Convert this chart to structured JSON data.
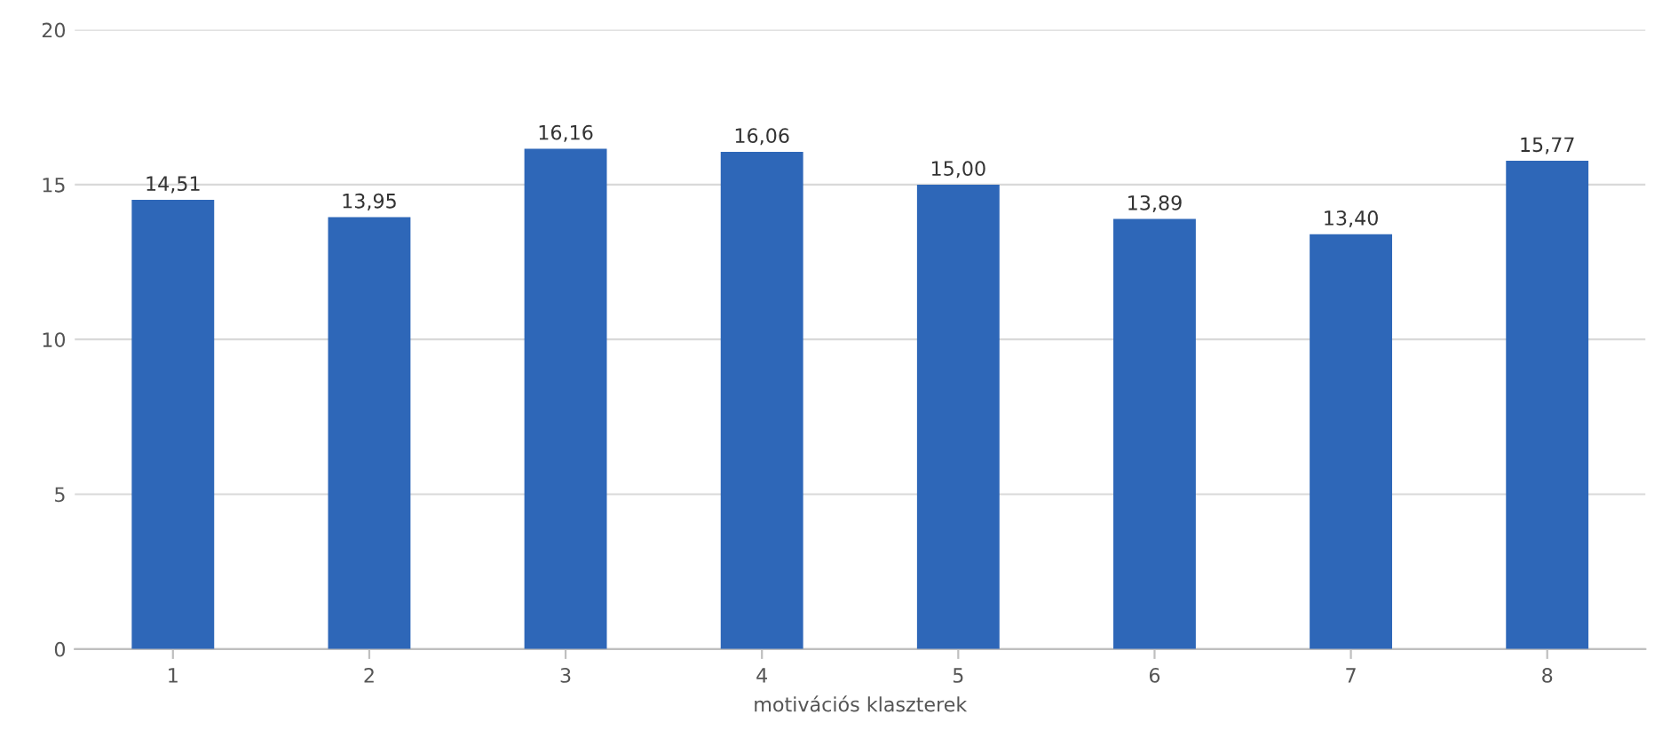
{
  "chart_data": {
    "type": "bar",
    "xlabel": "motivációs klaszterek",
    "categories": [
      "1",
      "2",
      "3",
      "4",
      "5",
      "6",
      "7",
      "8"
    ],
    "values": [
      14.51,
      13.95,
      16.16,
      16.06,
      15.0,
      13.89,
      13.4,
      15.77
    ],
    "value_labels": [
      "14,51",
      "13,95",
      "16,16",
      "16,06",
      "15,00",
      "13,89",
      "13,40",
      "15,77"
    ],
    "color": "#2e67b8",
    "ylim": [
      0,
      20
    ],
    "yticks": [
      0,
      5,
      10,
      15,
      20
    ],
    "grid": "y"
  }
}
